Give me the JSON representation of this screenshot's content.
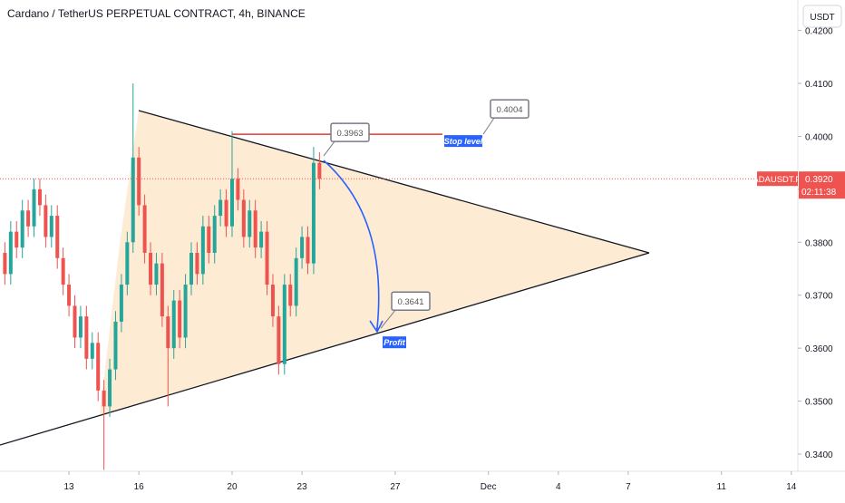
{
  "chart_data": {
    "type": "candlestick",
    "title": "Cardano / TetherUS PERPETUAL CONTRACT, 4h, BINANCE",
    "currency": "USDT",
    "symbol": "ADAUSDT.P",
    "last_price": {
      "value": 0.392,
      "label": "0.3920"
    },
    "countdown": "02:11:38",
    "x": [
      10.25,
      10.5,
      10.75,
      11,
      11.25,
      11.5,
      11.75,
      12,
      12.25,
      12.5,
      12.75,
      13,
      13.25,
      13.5,
      13.75,
      14,
      14.25,
      14.5,
      14.75,
      15,
      15.25,
      15.5,
      15.75,
      16,
      16.25,
      16.5,
      16.75,
      17,
      17.25,
      17.5,
      17.75,
      18,
      18.25,
      18.5,
      18.75,
      19,
      19.25,
      19.5,
      19.75,
      20,
      20.25,
      20.5,
      20.75,
      21,
      21.25,
      21.5,
      21.75,
      22,
      22.25,
      22.5,
      22.75,
      23,
      23.25,
      23.5,
      23.75
    ],
    "open": [
      0.378,
      0.374,
      0.382,
      0.379,
      0.386,
      0.383,
      0.39,
      0.387,
      0.381,
      0.385,
      0.377,
      0.372,
      0.368,
      0.362,
      0.366,
      0.358,
      0.361,
      0.352,
      0.349,
      0.356,
      0.365,
      0.372,
      0.38,
      0.396,
      0.387,
      0.378,
      0.372,
      0.376,
      0.366,
      0.36,
      0.369,
      0.362,
      0.372,
      0.378,
      0.374,
      0.383,
      0.378,
      0.385,
      0.388,
      0.383,
      0.392,
      0.388,
      0.381,
      0.386,
      0.379,
      0.382,
      0.372,
      0.366,
      0.357,
      0.372,
      0.368,
      0.377,
      0.381,
      0.376,
      0.395
    ],
    "high": [
      0.38,
      0.384,
      0.384,
      0.388,
      0.388,
      0.392,
      0.392,
      0.389,
      0.387,
      0.387,
      0.379,
      0.374,
      0.37,
      0.368,
      0.368,
      0.363,
      0.363,
      0.354,
      0.358,
      0.367,
      0.374,
      0.382,
      0.41,
      0.398,
      0.389,
      0.38,
      0.378,
      0.378,
      0.368,
      0.371,
      0.371,
      0.374,
      0.38,
      0.38,
      0.385,
      0.385,
      0.387,
      0.39,
      0.39,
      0.401,
      0.394,
      0.39,
      0.388,
      0.388,
      0.384,
      0.384,
      0.374,
      0.368,
      0.374,
      0.374,
      0.379,
      0.383,
      0.383,
      0.398,
      0.397
    ],
    "low": [
      0.372,
      0.372,
      0.377,
      0.377,
      0.381,
      0.381,
      0.385,
      0.379,
      0.379,
      0.375,
      0.37,
      0.366,
      0.36,
      0.36,
      0.356,
      0.356,
      0.35,
      0.337,
      0.347,
      0.354,
      0.363,
      0.37,
      0.378,
      0.385,
      0.376,
      0.37,
      0.37,
      0.364,
      0.349,
      0.358,
      0.36,
      0.36,
      0.37,
      0.372,
      0.372,
      0.376,
      0.376,
      0.383,
      0.381,
      0.381,
      0.386,
      0.379,
      0.379,
      0.377,
      0.377,
      0.37,
      0.364,
      0.355,
      0.355,
      0.366,
      0.366,
      0.375,
      0.374,
      0.374,
      0.39
    ],
    "close": [
      0.374,
      0.382,
      0.379,
      0.386,
      0.383,
      0.39,
      0.387,
      0.381,
      0.385,
      0.377,
      0.372,
      0.368,
      0.362,
      0.366,
      0.358,
      0.361,
      0.352,
      0.349,
      0.356,
      0.365,
      0.372,
      0.38,
      0.396,
      0.387,
      0.378,
      0.372,
      0.376,
      0.366,
      0.36,
      0.369,
      0.362,
      0.372,
      0.378,
      0.374,
      0.383,
      0.378,
      0.385,
      0.388,
      0.383,
      0.392,
      0.388,
      0.381,
      0.386,
      0.379,
      0.382,
      0.372,
      0.366,
      0.357,
      0.372,
      0.368,
      0.377,
      0.381,
      0.376,
      0.395,
      0.392
    ],
    "up_color": "#26a69a",
    "down_color": "#ef5350",
    "xlim": [
      10.04,
      44.28
    ],
    "xticks": [
      13,
      16,
      20,
      23,
      27,
      {
        "value": 31,
        "label": "Dec"
      },
      {
        "value": 34,
        "label": "4"
      },
      {
        "value": 37,
        "label": "7"
      },
      {
        "value": 41,
        "label": "11"
      },
      {
        "value": 44,
        "label": "14"
      }
    ],
    "ylim": [
      0.33675,
      0.42575
    ],
    "yticks": [
      {
        "value": 0.42,
        "label": "0.4200"
      },
      {
        "value": 0.41,
        "label": "0.4100"
      },
      {
        "value": 0.4,
        "label": "0.4000"
      },
      {
        "value": 0.39,
        "label": "0.3900"
      },
      {
        "value": 0.38,
        "label": "0.3800"
      },
      {
        "value": 0.37,
        "label": "0.3700"
      },
      {
        "value": 0.36,
        "label": "0.3600"
      },
      {
        "value": 0.35,
        "label": "0.3500"
      },
      {
        "value": 0.34,
        "label": "0.3400"
      }
    ],
    "stop": {
      "value": 0.4004,
      "text": "Stop level"
    },
    "entry": 0.3963,
    "target": {
      "value": 0.3641,
      "text": "Profit"
    }
  }
}
